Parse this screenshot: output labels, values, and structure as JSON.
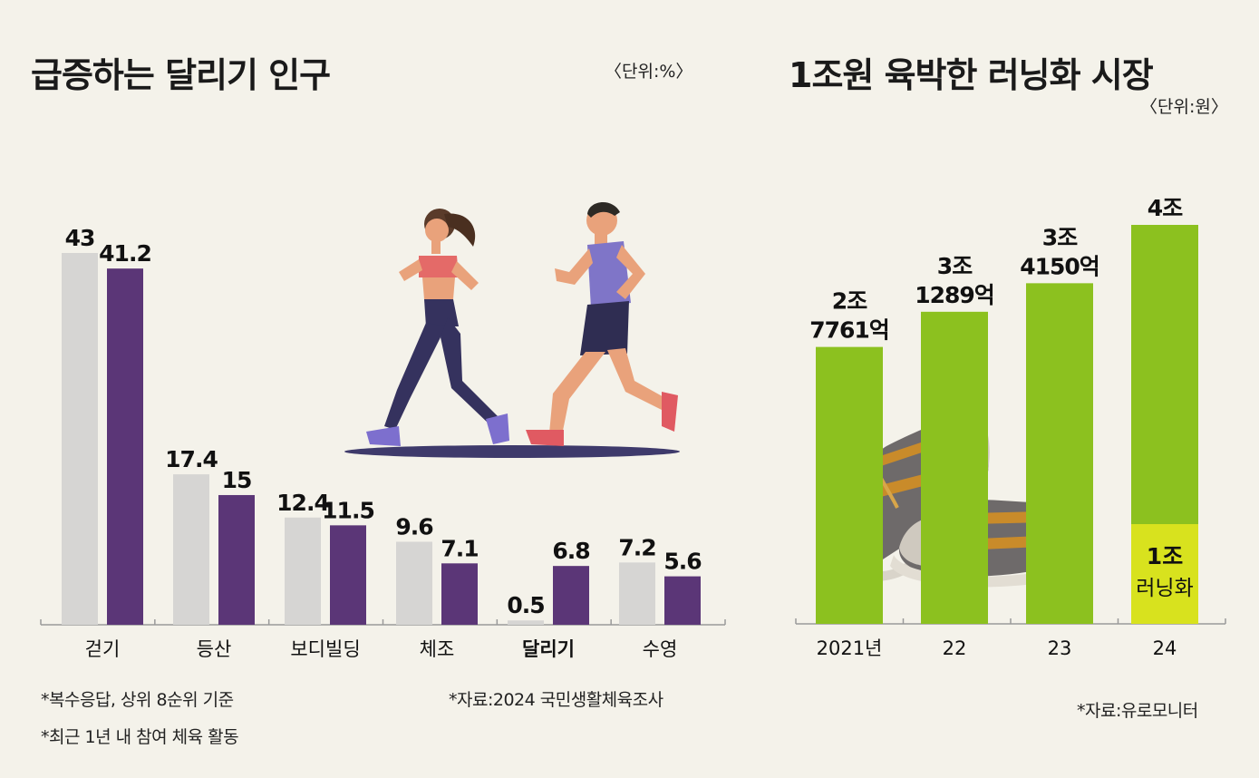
{
  "left": {
    "title": "급증하는 달리기 인구",
    "unit": "〈단위:%〉",
    "notes": [
      "*복수응답, 상위 8순위 기준",
      "*최근 1년 내 참여 체육 활동"
    ],
    "source": "*자료:2024 국민생활체육조사"
  },
  "right": {
    "title": "1조원 육박한 러닝화 시장",
    "unit": "〈단위:원〉",
    "source": "*자료:유로모니터"
  },
  "colors": {
    "gray": "#d6d5d3",
    "purple": "#5b3677",
    "green": "#8cc11f",
    "yellow": "#d8e21e",
    "background": "#f4f2ea"
  },
  "chart_data": [
    {
      "type": "bar",
      "categories": [
        "걷기",
        "등산",
        "보디빌딩",
        "체조",
        "달리기",
        "수영"
      ],
      "highlight_category": "달리기",
      "series": [
        {
          "color": "#d6d5d3",
          "values": [
            43,
            17.4,
            12.4,
            9.6,
            0.5,
            7.2
          ],
          "labels": [
            "43",
            "17.4",
            "12.4",
            "9.6",
            "0.5",
            "7.2"
          ]
        },
        {
          "color": "#5b3677",
          "values": [
            41.2,
            15,
            11.5,
            7.1,
            6.8,
            5.6
          ],
          "labels": [
            "41.2",
            "15",
            "11.5",
            "7.1",
            "6.8",
            "5.6"
          ]
        }
      ],
      "ylim": [
        0,
        43
      ],
      "grid": false
    },
    {
      "type": "bar",
      "categories": [
        "2021년",
        "22",
        "23",
        "24"
      ],
      "values": [
        27761,
        31289,
        34150,
        40000
      ],
      "value_labels": [
        [
          "2조",
          "7761억"
        ],
        [
          "3조",
          "1289억"
        ],
        [
          "3조",
          "4150억"
        ],
        [
          "4조"
        ]
      ],
      "segment": {
        "category": "24",
        "value": 10000,
        "labels": [
          "1조",
          "러닝화"
        ],
        "color": "#d8e21e"
      },
      "units": "억원",
      "ylim": [
        0,
        40000
      ],
      "grid": false
    }
  ]
}
